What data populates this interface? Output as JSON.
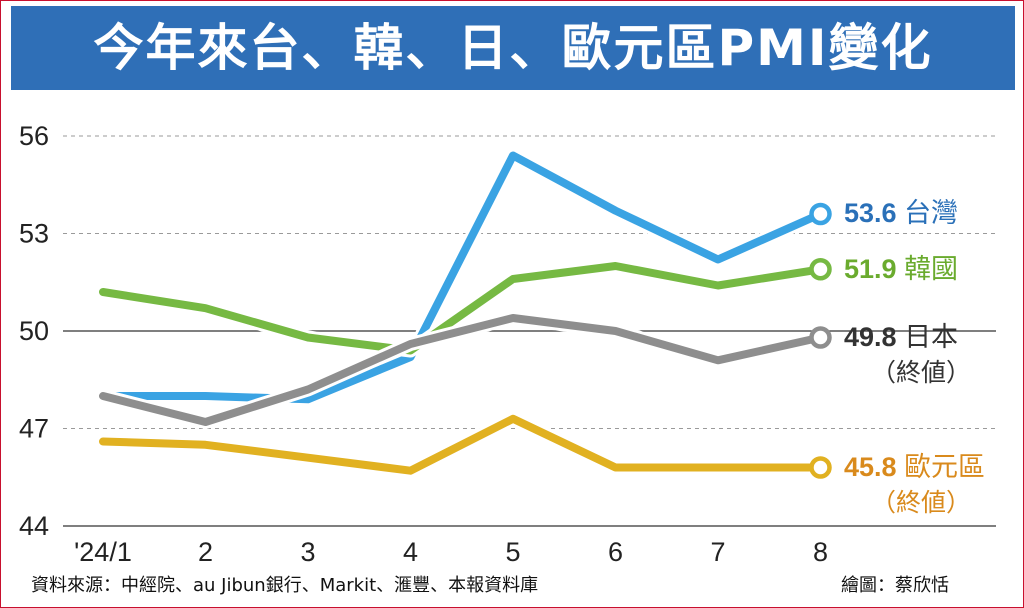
{
  "title": "今年來台、韓、日、歐元區PMI變化",
  "source": "資料來源：中經院、au Jibun銀行、Markit、滙豐、本報資料庫",
  "credit": "繪圖：蔡欣恬",
  "colors": {
    "header": "#2f6fb7",
    "border": "#c8102e"
  },
  "chart_data": {
    "type": "line",
    "categories": [
      "'24/1",
      "2",
      "3",
      "4",
      "5",
      "6",
      "7",
      "8"
    ],
    "ylim": [
      44,
      56
    ],
    "yticks": [
      44,
      47,
      50,
      53,
      56
    ],
    "grid": true,
    "series": [
      {
        "name": "台灣",
        "color": "#3aa3e3",
        "label_color": "#2a70b8",
        "values": [
          48.0,
          48.0,
          47.9,
          49.2,
          55.4,
          53.7,
          52.2,
          53.6
        ],
        "end_value": "53.6",
        "end_label": "台灣",
        "end_label2": ""
      },
      {
        "name": "韓國",
        "color": "#76b943",
        "label_color": "#6aab2e",
        "values": [
          51.2,
          50.7,
          49.8,
          49.4,
          51.6,
          52.0,
          51.4,
          51.9
        ],
        "end_value": "51.9",
        "end_label": "韓國",
        "end_label2": ""
      },
      {
        "name": "日本",
        "color": "#8e8e8e",
        "label_color": "#333333",
        "values": [
          48.0,
          47.2,
          48.2,
          49.6,
          50.4,
          50.0,
          49.1,
          49.8
        ],
        "end_value": "49.8",
        "end_label": "日本",
        "end_label2": "（終値）"
      },
      {
        "name": "歐元區",
        "color": "#e1b121",
        "label_color": "#d98a1c",
        "values": [
          46.6,
          46.5,
          46.1,
          45.7,
          47.3,
          45.8,
          45.8,
          45.8
        ],
        "end_value": "45.8",
        "end_label": "歐元區",
        "end_label2": "（終値）"
      }
    ]
  }
}
